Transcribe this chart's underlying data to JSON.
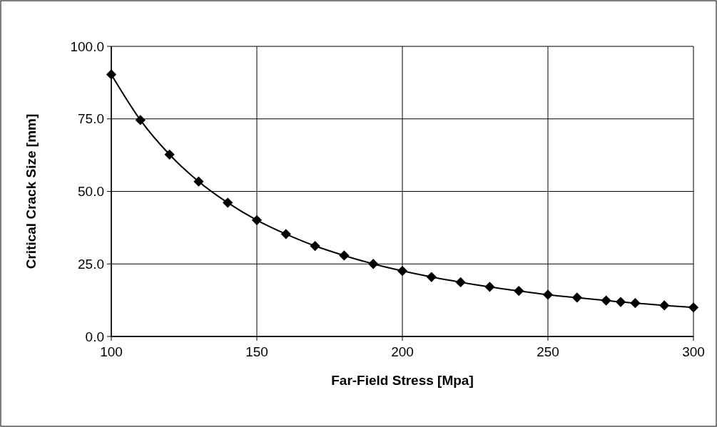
{
  "chart_data": {
    "type": "line",
    "xlabel": "Far-Field Stress [Mpa]",
    "ylabel": "Critical Crack Size [mm]",
    "x": [
      100,
      110,
      120,
      130,
      140,
      150,
      160,
      170,
      180,
      190,
      200,
      210,
      220,
      230,
      240,
      250,
      260,
      270,
      275,
      280,
      290,
      300
    ],
    "series": [
      {
        "color": "#000000",
        "values": [
          90.3,
          74.6,
          62.7,
          53.4,
          46.1,
          40.1,
          35.3,
          31.2,
          27.9,
          25.0,
          22.6,
          20.5,
          18.7,
          17.1,
          15.7,
          14.4,
          13.4,
          12.4,
          11.9,
          11.5,
          10.7,
          10.0
        ]
      }
    ],
    "xlim": [
      100,
      300
    ],
    "xticks": [
      100,
      150,
      200,
      250,
      300
    ],
    "ylim": [
      0,
      100
    ],
    "yticks": [
      {
        "value": 0,
        "label": "0.0"
      },
      {
        "value": 25,
        "label": "25.0"
      },
      {
        "value": 50,
        "label": "50.0"
      },
      {
        "value": 75,
        "label": "75.0"
      },
      {
        "value": 100,
        "label": "100.0"
      }
    ],
    "grid": true,
    "marker": "diamond",
    "line_style": "solid"
  }
}
